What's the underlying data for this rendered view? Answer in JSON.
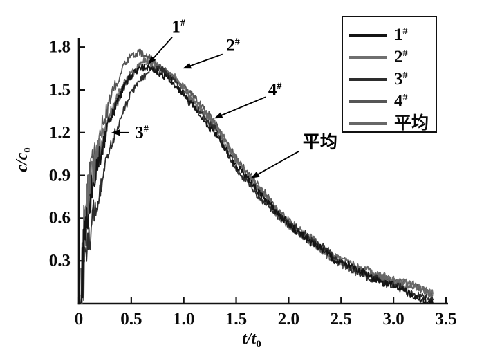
{
  "figure": {
    "background": "#ffffff",
    "axis_color": "#111111"
  },
  "chart_data": {
    "type": "line",
    "title": "",
    "xlabel": {
      "base": "t/t",
      "sub": "0"
    },
    "ylabel": {
      "base": "c/c",
      "sub": "0"
    },
    "xlim": [
      0,
      3.5
    ],
    "ylim": [
      0,
      1.8
    ],
    "grid": false,
    "legend_position": "upper right",
    "x_ticks": [
      "0",
      "0.5",
      "1.0",
      "1.5",
      "2.0",
      "2.5",
      "3.0",
      "3.5"
    ],
    "x_tick_values": [
      0,
      0.5,
      1.0,
      1.5,
      2.0,
      2.5,
      3.0,
      3.5
    ],
    "y_ticks": [
      "0.3",
      "0.6",
      "0.9",
      "1.2",
      "1.5",
      "1.8"
    ],
    "y_tick_values": [
      0.3,
      0.6,
      0.9,
      1.2,
      1.5,
      1.8
    ],
    "noise": {
      "base": 0.024,
      "rise": 0.3,
      "tau": 0.12
    },
    "series": [
      {
        "name": "1",
        "sup": "#",
        "color": "#141414",
        "seed": 11,
        "points": [
          [
            0.02,
            0.05
          ],
          [
            0.04,
            0.3
          ],
          [
            0.06,
            0.52
          ],
          [
            0.09,
            0.68
          ],
          [
            0.12,
            0.78
          ],
          [
            0.16,
            0.92
          ],
          [
            0.2,
            1.04
          ],
          [
            0.25,
            1.17
          ],
          [
            0.3,
            1.28
          ],
          [
            0.35,
            1.38
          ],
          [
            0.4,
            1.46
          ],
          [
            0.45,
            1.52
          ],
          [
            0.5,
            1.57
          ],
          [
            0.55,
            1.6
          ],
          [
            0.6,
            1.62
          ],
          [
            0.65,
            1.63
          ],
          [
            0.7,
            1.62
          ],
          [
            0.75,
            1.61
          ],
          [
            0.8,
            1.58
          ],
          [
            0.85,
            1.55
          ],
          [
            0.9,
            1.52
          ],
          [
            0.95,
            1.49
          ],
          [
            1.0,
            1.45
          ],
          [
            1.1,
            1.37
          ],
          [
            1.2,
            1.29
          ],
          [
            1.3,
            1.2
          ],
          [
            1.4,
            1.08
          ],
          [
            1.5,
            0.96
          ],
          [
            1.6,
            0.86
          ],
          [
            1.7,
            0.77
          ],
          [
            1.8,
            0.68
          ],
          [
            1.9,
            0.6
          ],
          [
            2.0,
            0.53
          ],
          [
            2.2,
            0.41
          ],
          [
            2.4,
            0.31
          ],
          [
            2.6,
            0.23
          ],
          [
            2.8,
            0.16
          ],
          [
            3.0,
            0.11
          ],
          [
            3.2,
            0.07
          ],
          [
            3.38,
            0.04
          ]
        ]
      },
      {
        "name": "2",
        "sup": "#",
        "color": "#6f6f6f",
        "seed": 23,
        "points": [
          [
            0.02,
            0.06
          ],
          [
            0.04,
            0.34
          ],
          [
            0.06,
            0.58
          ],
          [
            0.09,
            0.74
          ],
          [
            0.12,
            0.85
          ],
          [
            0.16,
            0.99
          ],
          [
            0.2,
            1.11
          ],
          [
            0.25,
            1.24
          ],
          [
            0.3,
            1.35
          ],
          [
            0.35,
            1.45
          ],
          [
            0.4,
            1.53
          ],
          [
            0.45,
            1.6
          ],
          [
            0.5,
            1.65
          ],
          [
            0.55,
            1.68
          ],
          [
            0.6,
            1.7
          ],
          [
            0.65,
            1.7
          ],
          [
            0.7,
            1.69
          ],
          [
            0.75,
            1.67
          ],
          [
            0.8,
            1.65
          ],
          [
            0.85,
            1.63
          ],
          [
            0.9,
            1.61
          ],
          [
            0.95,
            1.58
          ],
          [
            1.0,
            1.54
          ],
          [
            1.1,
            1.44
          ],
          [
            1.2,
            1.35
          ],
          [
            1.3,
            1.26
          ],
          [
            1.4,
            1.14
          ],
          [
            1.5,
            1.02
          ],
          [
            1.6,
            0.92
          ],
          [
            1.7,
            0.83
          ],
          [
            1.8,
            0.74
          ],
          [
            1.9,
            0.65
          ],
          [
            2.0,
            0.58
          ],
          [
            2.2,
            0.46
          ],
          [
            2.4,
            0.36
          ],
          [
            2.6,
            0.28
          ],
          [
            2.8,
            0.21
          ],
          [
            3.0,
            0.16
          ],
          [
            3.2,
            0.12
          ],
          [
            3.38,
            0.09
          ]
        ]
      },
      {
        "name": "3",
        "sup": "#",
        "color": "#2d2d2d",
        "seed": 37,
        "points": [
          [
            0.03,
            0.04
          ],
          [
            0.05,
            0.22
          ],
          [
            0.08,
            0.42
          ],
          [
            0.12,
            0.58
          ],
          [
            0.16,
            0.7
          ],
          [
            0.2,
            0.82
          ],
          [
            0.25,
            0.97
          ],
          [
            0.3,
            1.1
          ],
          [
            0.35,
            1.2
          ],
          [
            0.4,
            1.3
          ],
          [
            0.45,
            1.39
          ],
          [
            0.5,
            1.46
          ],
          [
            0.55,
            1.52
          ],
          [
            0.6,
            1.56
          ],
          [
            0.65,
            1.59
          ],
          [
            0.7,
            1.61
          ],
          [
            0.75,
            1.62
          ],
          [
            0.8,
            1.61
          ],
          [
            0.85,
            1.59
          ],
          [
            0.9,
            1.56
          ],
          [
            0.95,
            1.52
          ],
          [
            1.0,
            1.48
          ],
          [
            1.1,
            1.4
          ],
          [
            1.2,
            1.31
          ],
          [
            1.3,
            1.22
          ],
          [
            1.4,
            1.1
          ],
          [
            1.5,
            0.98
          ],
          [
            1.6,
            0.88
          ],
          [
            1.7,
            0.79
          ],
          [
            1.8,
            0.7
          ],
          [
            1.9,
            0.62
          ],
          [
            2.0,
            0.55
          ],
          [
            2.2,
            0.43
          ],
          [
            2.4,
            0.33
          ],
          [
            2.6,
            0.25
          ],
          [
            2.8,
            0.18
          ],
          [
            3.0,
            0.13
          ],
          [
            3.2,
            0.09
          ],
          [
            3.38,
            0.06
          ]
        ]
      },
      {
        "name": "4",
        "sup": "#",
        "color": "#565656",
        "seed": 51,
        "points": [
          [
            0.02,
            0.08
          ],
          [
            0.04,
            0.4
          ],
          [
            0.06,
            0.66
          ],
          [
            0.09,
            0.82
          ],
          [
            0.12,
            0.93
          ],
          [
            0.16,
            1.07
          ],
          [
            0.2,
            1.19
          ],
          [
            0.25,
            1.32
          ],
          [
            0.3,
            1.44
          ],
          [
            0.35,
            1.54
          ],
          [
            0.4,
            1.63
          ],
          [
            0.45,
            1.7
          ],
          [
            0.5,
            1.74
          ],
          [
            0.55,
            1.76
          ],
          [
            0.6,
            1.75
          ],
          [
            0.65,
            1.73
          ],
          [
            0.7,
            1.7
          ],
          [
            0.75,
            1.67
          ],
          [
            0.8,
            1.63
          ],
          [
            0.85,
            1.6
          ],
          [
            0.9,
            1.57
          ],
          [
            0.95,
            1.54
          ],
          [
            1.0,
            1.5
          ],
          [
            1.1,
            1.42
          ],
          [
            1.2,
            1.33
          ],
          [
            1.3,
            1.24
          ],
          [
            1.4,
            1.12
          ],
          [
            1.5,
            1.0
          ],
          [
            1.6,
            0.9
          ],
          [
            1.7,
            0.81
          ],
          [
            1.8,
            0.72
          ],
          [
            1.9,
            0.64
          ],
          [
            2.0,
            0.57
          ],
          [
            2.2,
            0.45
          ],
          [
            2.4,
            0.35
          ],
          [
            2.6,
            0.27
          ],
          [
            2.8,
            0.2
          ],
          [
            3.0,
            0.15
          ],
          [
            3.2,
            0.11
          ],
          [
            3.38,
            0.08
          ]
        ]
      },
      {
        "name": "平均",
        "sup": "",
        "color": "#676767",
        "seed": 67,
        "points": [
          [
            0.02,
            0.06
          ],
          [
            0.04,
            0.31
          ],
          [
            0.06,
            0.55
          ],
          [
            0.09,
            0.72
          ],
          [
            0.12,
            0.83
          ],
          [
            0.16,
            0.95
          ],
          [
            0.2,
            1.06
          ],
          [
            0.25,
            1.19
          ],
          [
            0.3,
            1.3
          ],
          [
            0.35,
            1.4
          ],
          [
            0.4,
            1.48
          ],
          [
            0.45,
            1.55
          ],
          [
            0.5,
            1.6
          ],
          [
            0.55,
            1.64
          ],
          [
            0.6,
            1.66
          ],
          [
            0.65,
            1.67
          ],
          [
            0.7,
            1.66
          ],
          [
            0.75,
            1.64
          ],
          [
            0.8,
            1.62
          ],
          [
            0.85,
            1.59
          ],
          [
            0.9,
            1.56
          ],
          [
            0.95,
            1.53
          ],
          [
            1.0,
            1.49
          ],
          [
            1.1,
            1.41
          ],
          [
            1.2,
            1.32
          ],
          [
            1.3,
            1.23
          ],
          [
            1.4,
            1.11
          ],
          [
            1.5,
            0.99
          ],
          [
            1.6,
            0.89
          ],
          [
            1.7,
            0.8
          ],
          [
            1.8,
            0.71
          ],
          [
            1.9,
            0.63
          ],
          [
            2.0,
            0.56
          ],
          [
            2.2,
            0.44
          ],
          [
            2.4,
            0.34
          ],
          [
            2.6,
            0.26
          ],
          [
            2.8,
            0.19
          ],
          [
            3.0,
            0.14
          ],
          [
            3.2,
            0.1
          ],
          [
            3.38,
            0.07
          ]
        ]
      }
    ],
    "annotations": [
      {
        "label": "1",
        "sup": "#",
        "text_at": [
          0.95,
          1.94
        ],
        "arrow_from": [
          0.89,
          1.87
        ],
        "arrow_to": [
          0.66,
          1.68
        ]
      },
      {
        "label": "2",
        "sup": "#",
        "text_at": [
          1.47,
          1.81
        ],
        "arrow_from": [
          1.37,
          1.75
        ],
        "arrow_to": [
          0.99,
          1.65
        ]
      },
      {
        "label": "3",
        "sup": "#",
        "text_at": [
          0.6,
          1.2
        ],
        "arrow_from": [
          0.48,
          1.2
        ],
        "arrow_to": [
          0.31,
          1.2
        ]
      },
      {
        "label": "4",
        "sup": "#",
        "text_at": [
          1.87,
          1.5
        ],
        "arrow_from": [
          1.78,
          1.45
        ],
        "arrow_to": [
          1.29,
          1.3
        ]
      },
      {
        "label": "平均",
        "sup": "",
        "text_at": [
          2.3,
          1.13
        ],
        "arrow_from": [
          2.1,
          1.07
        ],
        "arrow_to": [
          1.64,
          0.88
        ]
      }
    ]
  }
}
